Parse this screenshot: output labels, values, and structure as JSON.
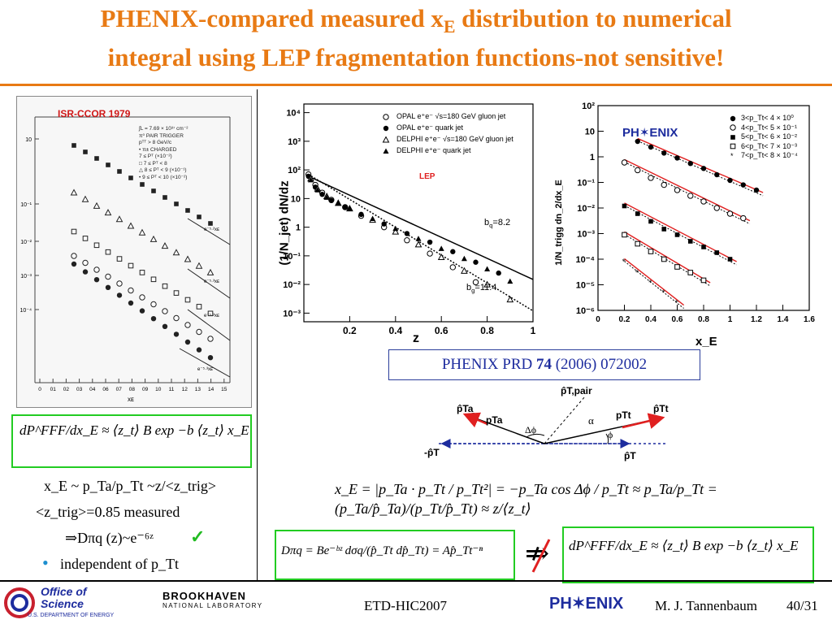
{
  "slide": {
    "title_part1": "PHENIX-compared measured x",
    "title_sub": "E",
    "title_part2": " distribution to numerical",
    "title_line2": "integral using LEP fragmentation functions-not sensitive!"
  },
  "left_plot": {
    "label": "ISR-CCOR 1979",
    "legend": [
      "∫L = 7.69 × 10³⁷ cm⁻²",
      "π⁰ PAIR TRIGGER",
      "pᵀᵀ > 8 GeV/c",
      "• π± CHARGED",
      "7 ≤ Pᵀ (×10⁻²)",
      "□ 7 ≤ Pᵀ < 8",
      "△ 8 ≤ Pᵀ < 9 (×10⁻¹)",
      "• 9 ≤ Pᵀ < 10 (×10⁻²)"
    ],
    "y_ticks": [
      "10",
      "10⁻¹",
      "10⁻²",
      "10⁻³",
      "10⁻⁴"
    ],
    "x_ticks": [
      "0",
      "01",
      "02",
      "03",
      "04",
      "06",
      "07",
      "08",
      "09",
      "10",
      "11",
      "12",
      "13",
      "14",
      "15"
    ],
    "xlabel": "xᴇ",
    "fit_labels": [
      "e⁻⁵·²xᴇ",
      "e⁻⁵·³xᴇ",
      "e⁻⁵·³xᴇ",
      "e⁻⁵·³xᴇ"
    ]
  },
  "chart_data": [
    {
      "type": "scatter",
      "title": "",
      "xlabel": "z",
      "ylabel": "(1/N_jet) dN/dz",
      "yscale": "log",
      "ylim": [
        0.0005,
        20000
      ],
      "xlim": [
        0,
        1
      ],
      "x_ticks": [
        "0.2",
        "0.4",
        "0.6",
        "0.8",
        "1"
      ],
      "y_ticks": [
        "10⁴",
        "10³",
        "10²",
        "10",
        "1",
        "10⁻¹",
        "10⁻²",
        "10⁻³"
      ],
      "legend": [
        {
          "marker": "open-circle",
          "label": "OPAL e⁺e⁻ √s=180 GeV gluon jet"
        },
        {
          "marker": "filled-circle",
          "label": "OPAL e⁺e⁻ quark jet"
        },
        {
          "marker": "open-triangle",
          "label": "DELPHI e⁺e⁻ √s=180 GeV gluon jet"
        },
        {
          "marker": "filled-triangle",
          "label": "DELPHI e⁺e⁻ quark jet"
        }
      ],
      "annotations": [
        "LEP",
        "b",
        "q",
        "=8.2",
        "b",
        "g",
        "=11.4"
      ],
      "series": [
        {
          "name": "OPAL gluon jet",
          "x": [
            0.02,
            0.05,
            0.08,
            0.12,
            0.18,
            0.25,
            0.35,
            0.45,
            0.55,
            0.65,
            0.75
          ],
          "y": [
            70,
            30,
            16,
            9,
            5,
            2.5,
            1,
            0.35,
            0.12,
            0.04,
            0.012
          ]
        },
        {
          "name": "OPAL quark jet",
          "x": [
            0.02,
            0.05,
            0.08,
            0.12,
            0.18,
            0.25,
            0.35,
            0.45,
            0.55,
            0.65,
            0.75,
            0.85
          ],
          "y": [
            60,
            25,
            14,
            8.5,
            5,
            2.8,
            1.3,
            0.6,
            0.3,
            0.14,
            0.06,
            0.025
          ]
        },
        {
          "name": "DELPHI gluon jet",
          "x": [
            0.03,
            0.06,
            0.1,
            0.15,
            0.2,
            0.3,
            0.4,
            0.5,
            0.6,
            0.7,
            0.8,
            0.9
          ],
          "y": [
            50,
            22,
            12,
            7,
            4.5,
            1.8,
            0.7,
            0.25,
            0.09,
            0.03,
            0.01,
            0.003
          ]
        },
        {
          "name": "DELPHI quark jet",
          "x": [
            0.03,
            0.06,
            0.1,
            0.15,
            0.2,
            0.3,
            0.4,
            0.5,
            0.6,
            0.7,
            0.8,
            0.9
          ],
          "y": [
            45,
            20,
            11,
            7,
            4.5,
            2,
            0.9,
            0.4,
            0.18,
            0.08,
            0.035,
            0.013
          ]
        }
      ]
    },
    {
      "type": "scatter",
      "title": "",
      "xlabel": "x_E",
      "ylabel": "1/N_trigg dn_2/dx_E",
      "yscale": "log",
      "ylim": [
        1e-06,
        100
      ],
      "xlim": [
        0,
        1.6
      ],
      "x_ticks": [
        "0",
        "0.2",
        "0.4",
        "0.6",
        "0.8",
        "1",
        "1.2",
        "1.4",
        "1.6"
      ],
      "y_ticks": [
        "10²",
        "10",
        "1",
        "10⁻¹",
        "10⁻²",
        "10⁻³",
        "10⁻⁴",
        "10⁻⁵",
        "10⁻⁶"
      ],
      "legend": [
        {
          "marker": "filled-circle",
          "label": "3<p_Tt< 4 × 10⁰"
        },
        {
          "marker": "open-circle",
          "label": "4<p_Tt< 5 × 10⁻¹"
        },
        {
          "marker": "filled-square",
          "label": "5<p_Tt< 6 × 10⁻²"
        },
        {
          "marker": "open-square",
          "label": "6<p_Tt< 7 × 10⁻³"
        },
        {
          "marker": "star",
          "label": "7<p_Tt< 8 × 10⁻⁴"
        }
      ],
      "series": [
        {
          "name": "3<p_Tt<4",
          "x": [
            0.3,
            0.4,
            0.5,
            0.6,
            0.7,
            0.8,
            0.9,
            1.0,
            1.1,
            1.2
          ],
          "y": [
            4,
            2.4,
            1.4,
            0.9,
            0.55,
            0.35,
            0.2,
            0.12,
            0.08,
            0.05
          ]
        },
        {
          "name": "4<p_Tt<5",
          "x": [
            0.2,
            0.3,
            0.4,
            0.5,
            0.6,
            0.7,
            0.8,
            0.9,
            1.0,
            1.1
          ],
          "y": [
            0.6,
            0.3,
            0.15,
            0.08,
            0.05,
            0.03,
            0.018,
            0.01,
            0.006,
            0.004
          ]
        },
        {
          "name": "5<p_Tt<6",
          "x": [
            0.2,
            0.3,
            0.4,
            0.5,
            0.6,
            0.7,
            0.8,
            0.9,
            1.0
          ],
          "y": [
            0.012,
            0.006,
            0.003,
            0.0015,
            0.0009,
            0.0005,
            0.0003,
            0.00018,
            0.0001
          ]
        },
        {
          "name": "6<p_Tt<7",
          "x": [
            0.2,
            0.3,
            0.4,
            0.5,
            0.6,
            0.7,
            0.8
          ],
          "y": [
            0.0009,
            0.0004,
            0.0002,
            0.0001,
            5e-05,
            3e-05,
            1.5e-05
          ]
        },
        {
          "name": "7<p_Tt<8",
          "x": [
            0.2,
            0.3,
            0.4,
            0.5,
            0.6
          ],
          "y": [
            8e-05,
            3e-05,
            1.2e-05,
            5e-06,
            2e-06
          ]
        }
      ]
    }
  ],
  "phenix_ref": {
    "prefix": "PHENIX PRD ",
    "volume": "74",
    "suffix": " (2006) 072002"
  },
  "kinematics": {
    "p_T_pair": "p̂T,pair",
    "p_Ta_hat": "p̂Ta",
    "p_Ta": "pTa",
    "delta_phi": "Δϕ",
    "alpha": "α",
    "p_Tt": "pTt",
    "p_Tt_hat": "p̂Tt",
    "phi": "ϕ",
    "minus_p_T": "-p̂T",
    "p_T_hat": "p̂T"
  },
  "left_text": {
    "eq1": "dP^FFF/dx_E ≈ ⟨z_t⟩ B exp −b ⟨z_t⟩ x_E",
    "line1": "x_E ~ p_Ta/p_Tt ~z/<z_trig>",
    "line2": "<z_trig>=0.85 measured",
    "line3": "⇒Dπq (z)~e⁻⁶ᶻ",
    "check": "✓",
    "bullet": "•",
    "line4": "independent of p_Tt"
  },
  "equations": {
    "xE_main": "x_E = |p_Ta · p_Tt / p_Tt²| = −p_Ta cos Δϕ / p_Tt ≈ p_Ta/p_Tt = (p_Ta/p̂_Ta)/(p_Tt/p̂_Tt) ≈ z/⟨z_t⟩",
    "frag": "Dπq = Be⁻ᵇᶻ   dσq/(p̂_Tt dp̂_Tt) = Ap̂_Tt⁻ⁿ",
    "not_implies": "⇏",
    "eq_right": "dP^FFF/dx_E ≈ ⟨z_t⟩ B exp −b ⟨z_t⟩ x_E"
  },
  "footer": {
    "office_line1": "Office of",
    "office_line2": "Science",
    "office_line3": "U.S. DEPARTMENT OF ENERGY",
    "bnl_line1": "BROOKHAVEN",
    "bnl_line2": "NATIONAL LABORATORY",
    "conference": "ETD-HIC2007",
    "phenix_logo": "PH✶ENIX",
    "author": "M. J. Tannenbaum",
    "page": "40/31"
  },
  "colors": {
    "title": "#e87a14",
    "accent_blue": "#1d2c9e",
    "green_box": "#22cc22",
    "red_fit": "#e02020"
  }
}
